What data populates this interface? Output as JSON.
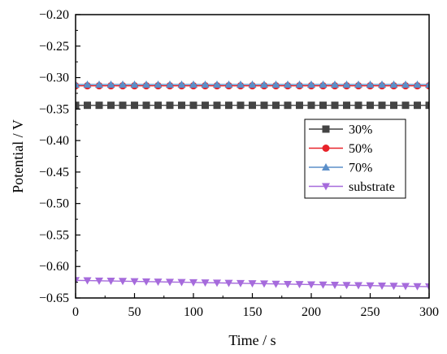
{
  "chart_data": {
    "type": "line",
    "xlabel": "Time / s",
    "ylabel": "Potential / V",
    "xlim": [
      0,
      300
    ],
    "ylim": [
      -0.65,
      -0.2
    ],
    "x_ticks": [
      0,
      50,
      100,
      150,
      200,
      250,
      300
    ],
    "x_tick_labels": [
      "0",
      "50",
      "100",
      "150",
      "200",
      "250",
      "300"
    ],
    "y_ticks": [
      -0.2,
      -0.25,
      -0.3,
      -0.35,
      -0.4,
      -0.45,
      -0.5,
      -0.55,
      -0.6,
      -0.65
    ],
    "y_tick_labels": [
      "-0.20",
      "-0.25",
      "-0.30",
      "-0.35",
      "-0.40",
      "-0.45",
      "-0.50",
      "-0.55",
      "-0.60",
      "-0.65"
    ],
    "grid": false,
    "legend_position": "right",
    "x": [
      0,
      10,
      20,
      30,
      40,
      50,
      60,
      70,
      80,
      90,
      100,
      110,
      120,
      130,
      140,
      150,
      160,
      170,
      180,
      190,
      200,
      210,
      220,
      230,
      240,
      250,
      260,
      270,
      280,
      290,
      300
    ],
    "series": [
      {
        "name": "30%",
        "color": "#444444",
        "marker": "square",
        "values": [
          -0.344,
          -0.344,
          -0.344,
          -0.344,
          -0.344,
          -0.344,
          -0.344,
          -0.344,
          -0.344,
          -0.344,
          -0.344,
          -0.344,
          -0.344,
          -0.344,
          -0.344,
          -0.344,
          -0.344,
          -0.344,
          -0.344,
          -0.344,
          -0.344,
          -0.344,
          -0.344,
          -0.344,
          -0.344,
          -0.344,
          -0.344,
          -0.344,
          -0.344,
          -0.344,
          -0.344
        ]
      },
      {
        "name": "50%",
        "color": "#e8232a",
        "marker": "circle",
        "values": [
          -0.313,
          -0.313,
          -0.313,
          -0.313,
          -0.313,
          -0.313,
          -0.313,
          -0.313,
          -0.313,
          -0.313,
          -0.313,
          -0.313,
          -0.313,
          -0.313,
          -0.313,
          -0.313,
          -0.313,
          -0.313,
          -0.313,
          -0.313,
          -0.313,
          -0.313,
          -0.313,
          -0.313,
          -0.313,
          -0.313,
          -0.313,
          -0.313,
          -0.313,
          -0.313,
          -0.313
        ]
      },
      {
        "name": "70%",
        "color": "#5b8fc9",
        "marker": "triangle-up",
        "values": [
          -0.311,
          -0.311,
          -0.311,
          -0.311,
          -0.311,
          -0.311,
          -0.311,
          -0.311,
          -0.311,
          -0.311,
          -0.311,
          -0.311,
          -0.311,
          -0.311,
          -0.311,
          -0.311,
          -0.311,
          -0.311,
          -0.311,
          -0.311,
          -0.311,
          -0.311,
          -0.311,
          -0.311,
          -0.311,
          -0.311,
          -0.311,
          -0.311,
          -0.311,
          -0.311,
          -0.311
        ]
      },
      {
        "name": "substrate",
        "color": "#a66bdc",
        "marker": "triangle-down",
        "values": [
          -0.622,
          -0.6223,
          -0.6227,
          -0.623,
          -0.6233,
          -0.6237,
          -0.624,
          -0.6243,
          -0.6247,
          -0.625,
          -0.6253,
          -0.6257,
          -0.626,
          -0.6263,
          -0.6267,
          -0.627,
          -0.6273,
          -0.6277,
          -0.628,
          -0.6283,
          -0.6287,
          -0.629,
          -0.6293,
          -0.6297,
          -0.63,
          -0.6303,
          -0.6307,
          -0.631,
          -0.6313,
          -0.6317,
          -0.632
        ]
      }
    ]
  }
}
